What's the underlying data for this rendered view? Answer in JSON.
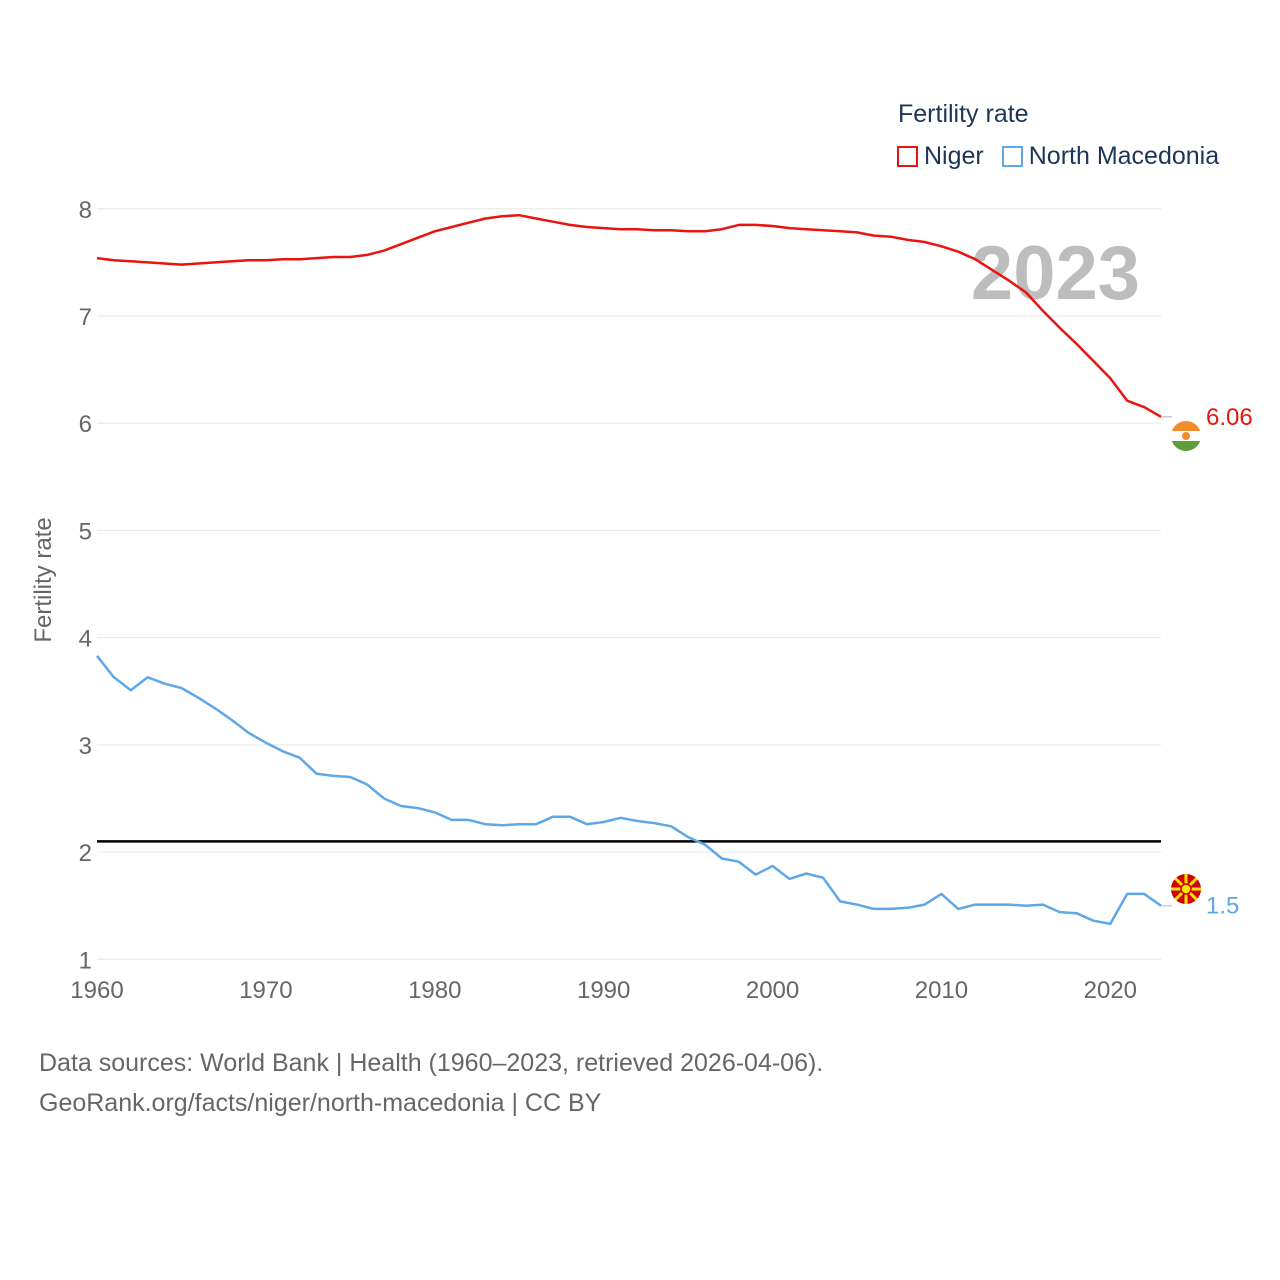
{
  "chart_data": {
    "type": "line",
    "title": "",
    "legend_title": "Fertility rate",
    "ylabel": "Fertility rate",
    "xlabel": "",
    "xlim": [
      1960,
      2023
    ],
    "ylim": [
      0.9,
      8.25
    ],
    "x_ticks": [
      1960,
      1970,
      1980,
      1990,
      2000,
      2010,
      2020
    ],
    "y_ticks": [
      1,
      2,
      3,
      4,
      5,
      6,
      7,
      8
    ],
    "year_label": "2023",
    "reference_line": {
      "y": 2.1,
      "color": "#000000"
    },
    "x": [
      1960,
      1961,
      1962,
      1963,
      1964,
      1965,
      1966,
      1967,
      1968,
      1969,
      1970,
      1971,
      1972,
      1973,
      1974,
      1975,
      1976,
      1977,
      1978,
      1979,
      1980,
      1981,
      1982,
      1983,
      1984,
      1985,
      1986,
      1987,
      1988,
      1989,
      1990,
      1991,
      1992,
      1993,
      1994,
      1995,
      1996,
      1997,
      1998,
      1999,
      2000,
      2001,
      2002,
      2003,
      2004,
      2005,
      2006,
      2007,
      2008,
      2009,
      2010,
      2011,
      2012,
      2013,
      2014,
      2015,
      2016,
      2017,
      2018,
      2019,
      2020,
      2021,
      2022,
      2023
    ],
    "series": [
      {
        "name": "Niger",
        "color": "#e8140f",
        "end_label": "6.06",
        "values": [
          7.54,
          7.52,
          7.51,
          7.5,
          7.49,
          7.48,
          7.49,
          7.5,
          7.51,
          7.52,
          7.52,
          7.53,
          7.53,
          7.54,
          7.55,
          7.55,
          7.57,
          7.61,
          7.67,
          7.73,
          7.79,
          7.83,
          7.87,
          7.91,
          7.93,
          7.94,
          7.91,
          7.88,
          7.85,
          7.83,
          7.82,
          7.81,
          7.81,
          7.8,
          7.8,
          7.79,
          7.79,
          7.81,
          7.85,
          7.85,
          7.84,
          7.82,
          7.81,
          7.8,
          7.79,
          7.78,
          7.75,
          7.74,
          7.71,
          7.69,
          7.65,
          7.6,
          7.53,
          7.43,
          7.33,
          7.22,
          7.05,
          6.89,
          6.74,
          6.58,
          6.42,
          6.21,
          6.15,
          6.06
        ]
      },
      {
        "name": "North Macedonia",
        "color": "#5fa8e8",
        "end_label": "1.5",
        "values": [
          3.83,
          3.63,
          3.51,
          3.63,
          3.57,
          3.53,
          3.44,
          3.34,
          3.23,
          3.11,
          3.02,
          2.94,
          2.88,
          2.73,
          2.71,
          2.7,
          2.63,
          2.5,
          2.43,
          2.41,
          2.37,
          2.3,
          2.3,
          2.26,
          2.25,
          2.26,
          2.26,
          2.33,
          2.33,
          2.26,
          2.28,
          2.32,
          2.29,
          2.27,
          2.24,
          2.14,
          2.07,
          1.94,
          1.91,
          1.79,
          1.87,
          1.75,
          1.8,
          1.76,
          1.54,
          1.51,
          1.47,
          1.47,
          1.48,
          1.51,
          1.61,
          1.47,
          1.51,
          1.51,
          1.51,
          1.5,
          1.51,
          1.44,
          1.43,
          1.36,
          1.33,
          1.61,
          1.61,
          1.5
        ]
      }
    ]
  },
  "footer": {
    "sources": "Data sources: World Bank | Health (1960–2023, retrieved 2026-04-06).",
    "attribution": "GeoRank.org/facts/niger/north-macedonia | CC BY"
  }
}
